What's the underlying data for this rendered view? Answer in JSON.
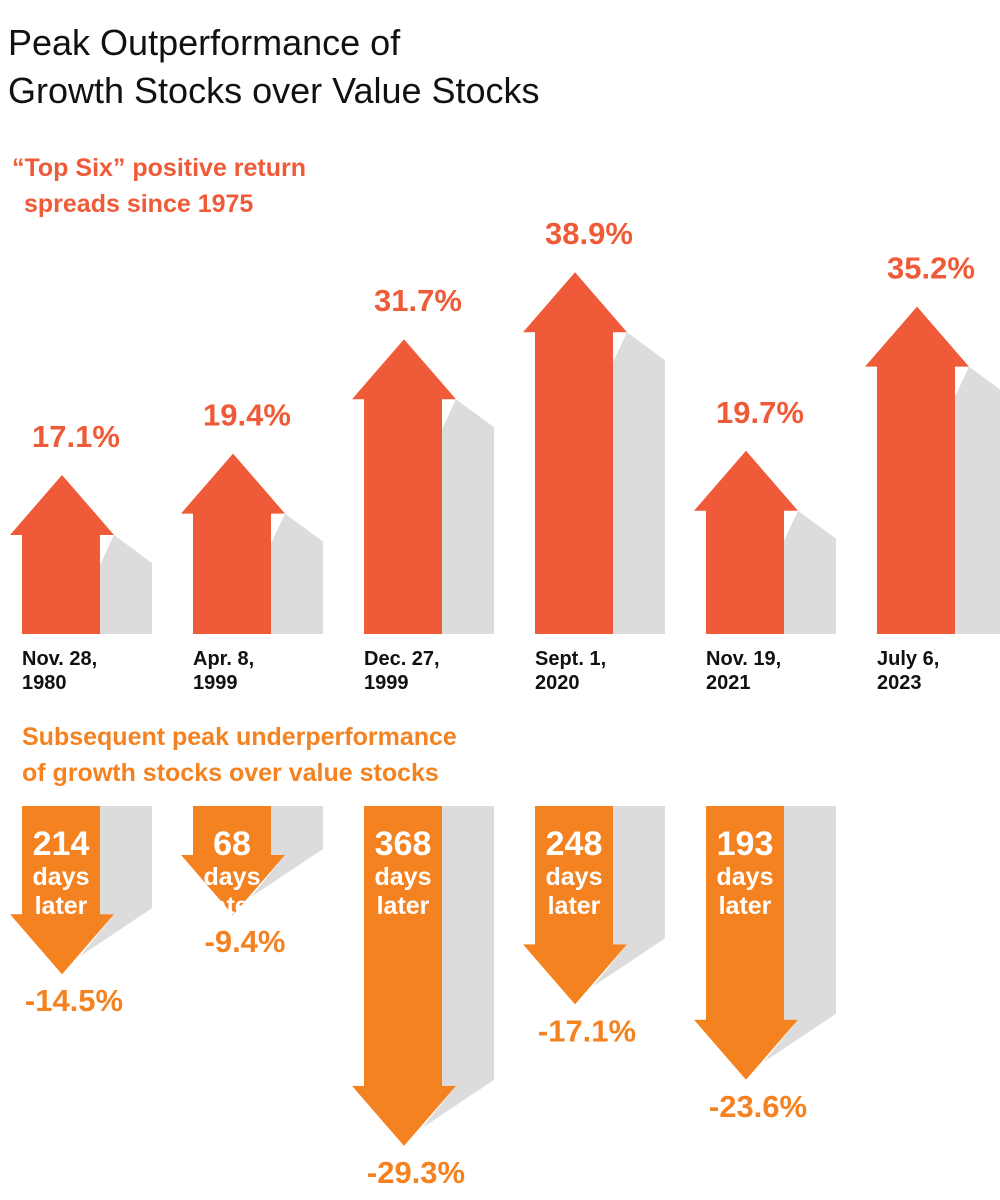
{
  "title": {
    "line1": "Peak Outperformance of",
    "line2": "Growth Stocks over Value Stocks"
  },
  "chart_data": [
    {
      "type": "bar",
      "name": "top",
      "subtitle": [
        "“Top Six” positive return",
        "spreads since 1975"
      ],
      "categories": [
        [
          "Nov. 28,",
          "1980"
        ],
        [
          "Apr. 8,",
          "1999"
        ],
        [
          "Dec. 27,",
          "1999"
        ],
        [
          "Sept. 1,",
          "2020"
        ],
        [
          "Nov. 19,",
          "2021"
        ],
        [
          "July 6,",
          "2023"
        ]
      ],
      "values": [
        17.1,
        19.4,
        31.7,
        38.9,
        19.7,
        35.2
      ],
      "value_labels": [
        "17.1%",
        "19.4%",
        "31.7%",
        "38.9%",
        "19.7%",
        "35.2%"
      ],
      "unit": "%",
      "color": "#EF5B38",
      "shadow_color": "#DCDCDC"
    },
    {
      "type": "bar",
      "name": "bottom",
      "subtitle": [
        "Subsequent peak underperformance",
        "of growth stocks over value stocks"
      ],
      "values": [
        -14.5,
        -9.4,
        -29.3,
        -17.1,
        -23.6
      ],
      "value_labels": [
        "-14.5%",
        "-9.4%",
        "-29.3%",
        "-17.1%",
        "-23.6%"
      ],
      "days": [
        "214",
        "68",
        "368",
        "248",
        "193"
      ],
      "days_line2": "days",
      "days_line3": "later",
      "unit": "%",
      "color": "#F58220",
      "shadow_color": "#DCDCDC"
    }
  ]
}
